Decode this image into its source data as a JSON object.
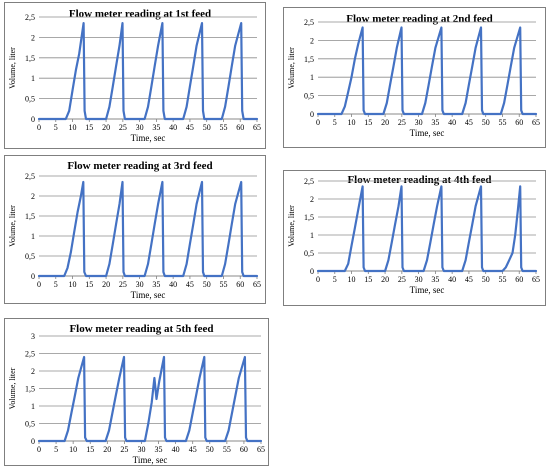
{
  "chart_data": [
    {
      "type": "line",
      "title": "Flow meter reading at 1st feed",
      "xlabel": "Time, sec",
      "ylabel": "Volume, liter",
      "xlim": [
        0,
        65
      ],
      "ylim": [
        0,
        2.5
      ],
      "xticks": [
        "0",
        "5",
        "10",
        "15",
        "20",
        "25",
        "30",
        "35",
        "40",
        "45",
        "50",
        "55",
        "60",
        "65"
      ],
      "yticks": [
        "0",
        "0,5",
        "1",
        "1,5",
        "2",
        "2,5"
      ],
      "grid": "horizontal",
      "color": "#4472c4",
      "series": [
        {
          "x": [
            0,
            8,
            9,
            10,
            11,
            12,
            13.3,
            13.6,
            14,
            20,
            21,
            22,
            23,
            24,
            24.9,
            25.2,
            25.6,
            31.5,
            32.5,
            33.5,
            34.5,
            35.5,
            36.8,
            37.1,
            37.5,
            43,
            44,
            45,
            46,
            47,
            48.6,
            48.9,
            49.3,
            54.5,
            55.5,
            56.5,
            57.5,
            58.5,
            60.3,
            60.6,
            61,
            65
          ],
          "y": [
            0,
            0,
            0.2,
            0.7,
            1.2,
            1.6,
            2.35,
            0.2,
            0,
            0,
            0.3,
            0.8,
            1.3,
            1.8,
            2.35,
            0.2,
            0,
            0,
            0.3,
            0.8,
            1.3,
            1.8,
            2.35,
            0.2,
            0,
            0,
            0.3,
            0.8,
            1.3,
            1.8,
            2.35,
            0.2,
            0,
            0,
            0.3,
            0.8,
            1.3,
            1.8,
            2.35,
            0.2,
            0,
            0
          ]
        }
      ]
    },
    {
      "type": "line",
      "title": "Flow meter reading at 2nd feed",
      "xlabel": "Time, sec",
      "ylabel": "Volume, liter",
      "xlim": [
        0,
        65
      ],
      "ylim": [
        0,
        2.5
      ],
      "xticks": [
        "0",
        "5",
        "10",
        "15",
        "20",
        "25",
        "30",
        "35",
        "40",
        "45",
        "50",
        "55",
        "60",
        "65"
      ],
      "yticks": [
        "0",
        "0,5",
        "1",
        "1,5",
        "2",
        "2,5"
      ],
      "grid": "horizontal",
      "color": "#4472c4",
      "series": [
        {
          "x": [
            0,
            7,
            8,
            9,
            10,
            11,
            12,
            13.3,
            13.6,
            14,
            19.5,
            20.5,
            21.5,
            22.5,
            23.5,
            24.9,
            25.2,
            25.6,
            31,
            32,
            33,
            34,
            35,
            36.8,
            37.1,
            37.5,
            43,
            44,
            45,
            46,
            47,
            48.6,
            48.9,
            49.3,
            54.5,
            55.5,
            56.5,
            57.5,
            58.5,
            60.3,
            60.6,
            61,
            65
          ],
          "y": [
            0,
            0,
            0.2,
            0.6,
            1.0,
            1.5,
            1.9,
            2.35,
            0.1,
            0,
            0,
            0.3,
            0.8,
            1.3,
            1.8,
            2.35,
            0.1,
            0,
            0,
            0.3,
            0.8,
            1.3,
            1.8,
            2.35,
            0.1,
            0,
            0,
            0.3,
            0.8,
            1.3,
            1.8,
            2.35,
            0.1,
            0,
            0,
            0.3,
            0.8,
            1.3,
            1.8,
            2.35,
            0.1,
            0,
            0
          ]
        }
      ]
    },
    {
      "type": "line",
      "title": "Flow meter reading at 3rd feed",
      "xlabel": "Time, sec",
      "ylabel": "Volume, liter",
      "xlim": [
        0,
        65
      ],
      "ylim": [
        0,
        2.5
      ],
      "xticks": [
        "0",
        "5",
        "10",
        "15",
        "20",
        "25",
        "30",
        "35",
        "40",
        "45",
        "50",
        "55",
        "60",
        "65"
      ],
      "yticks": [
        "0",
        "0,5",
        "1",
        "1,5",
        "2",
        "2,5"
      ],
      "grid": "horizontal",
      "color": "#4472c4",
      "series": [
        {
          "x": [
            0,
            7.5,
            8.5,
            9.5,
            10.5,
            11.5,
            12.5,
            13.2,
            13.5,
            14,
            20,
            21,
            22,
            23,
            24,
            24.9,
            25.2,
            25.6,
            31.5,
            32.5,
            33.5,
            34.5,
            35.5,
            36.8,
            37.1,
            37.5,
            43,
            44,
            45,
            46,
            47,
            48.6,
            48.9,
            49.3,
            54.5,
            55.5,
            56.5,
            57.5,
            58.5,
            60.3,
            60.6,
            61,
            65
          ],
          "y": [
            0,
            0,
            0.2,
            0.6,
            1.1,
            1.6,
            2.0,
            2.35,
            0.1,
            0,
            0,
            0.3,
            0.8,
            1.3,
            1.8,
            2.35,
            0.1,
            0,
            0,
            0.3,
            0.8,
            1.3,
            1.8,
            2.35,
            0.1,
            0,
            0,
            0.3,
            0.8,
            1.3,
            1.8,
            2.35,
            0.1,
            0,
            0,
            0.3,
            0.8,
            1.3,
            1.8,
            2.35,
            0.1,
            0,
            0
          ]
        }
      ]
    },
    {
      "type": "line",
      "title": "Flow meter reading at 4th feed",
      "xlabel": "Time, sec",
      "ylabel": "Volume, liter",
      "xlim": [
        0,
        65
      ],
      "ylim": [
        0,
        2.5
      ],
      "xticks": [
        "0",
        "5",
        "10",
        "15",
        "20",
        "25",
        "30",
        "35",
        "40",
        "45",
        "50",
        "55",
        "60",
        "65"
      ],
      "yticks": [
        "0",
        "0,5",
        "1",
        "1,5",
        "2",
        "2,5"
      ],
      "grid": "horizontal",
      "color": "#4472c4",
      "series": [
        {
          "x": [
            0,
            8,
            9,
            10,
            11,
            12,
            13.3,
            13.6,
            14,
            20,
            21,
            22,
            23,
            24,
            24.9,
            25.2,
            25.6,
            31.5,
            32.5,
            33.5,
            34.5,
            35.5,
            36.8,
            37.1,
            37.5,
            43,
            44,
            45,
            46,
            47,
            48.6,
            48.9,
            49.3,
            55,
            56,
            57,
            58,
            58.8,
            59.6,
            60.3,
            60.6,
            61,
            65
          ],
          "y": [
            0,
            0,
            0.2,
            0.7,
            1.2,
            1.7,
            2.35,
            0.1,
            0,
            0,
            0.3,
            0.8,
            1.3,
            1.8,
            2.35,
            0.1,
            0,
            0,
            0.3,
            0.8,
            1.3,
            1.8,
            2.35,
            0.1,
            0,
            0,
            0.3,
            0.8,
            1.3,
            1.8,
            2.35,
            0.1,
            0,
            0,
            0.1,
            0.3,
            0.5,
            1.0,
            1.7,
            2.35,
            0.1,
            0,
            0
          ]
        }
      ]
    },
    {
      "type": "line",
      "title": "Flow meter reading at 5th feed",
      "xlabel": "Time, sec",
      "ylabel": "Volume, liter",
      "xlim": [
        0,
        65
      ],
      "ylim": [
        0,
        3
      ],
      "xticks": [
        "0",
        "5",
        "10",
        "15",
        "20",
        "25",
        "30",
        "35",
        "40",
        "45",
        "50",
        "55",
        "60",
        "65"
      ],
      "yticks": [
        "0",
        "0,5",
        "1",
        "1,5",
        "2",
        "2,5",
        "3"
      ],
      "grid": "horizontal",
      "color": "#4472c4",
      "series": [
        {
          "x": [
            0,
            7.5,
            8.5,
            9.5,
            10.5,
            11.5,
            13.2,
            13.5,
            14,
            19.5,
            20.5,
            21.5,
            22.5,
            23.5,
            24.9,
            25.2,
            25.6,
            31,
            32,
            33,
            33.8,
            34.4,
            35.2,
            36.6,
            36.9,
            37.3,
            43,
            44,
            45,
            46,
            47,
            48.4,
            48.7,
            49.1,
            54.5,
            55.5,
            56.5,
            57.5,
            58.5,
            60.3,
            60.6,
            61,
            65
          ],
          "y": [
            0,
            0,
            0.3,
            0.8,
            1.3,
            1.8,
            2.4,
            0.1,
            0,
            0,
            0.3,
            0.8,
            1.3,
            1.8,
            2.4,
            0.1,
            0,
            0,
            0.5,
            1.1,
            1.8,
            1.2,
            1.7,
            2.4,
            0.1,
            0,
            0,
            0.3,
            0.8,
            1.3,
            1.8,
            2.4,
            0.1,
            0,
            0,
            0.3,
            0.8,
            1.3,
            1.8,
            2.4,
            0.1,
            0,
            0
          ]
        }
      ]
    }
  ]
}
